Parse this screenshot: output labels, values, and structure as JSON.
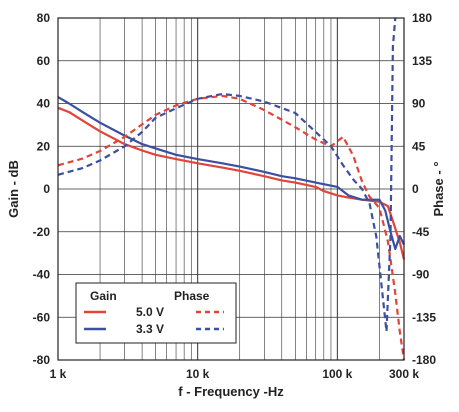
{
  "chart_data": {
    "type": "line",
    "xlabel": "f - Frequency -Hz",
    "ylabel_left": "Gain - dB",
    "ylabel_right": "Phase - °",
    "x_scale": "log",
    "xlim": [
      1000,
      300000
    ],
    "ylim_left": [
      -80,
      80
    ],
    "ylim_right": [
      -180,
      180
    ],
    "x_ticks": [
      {
        "value": 1000,
        "label": "1 k"
      },
      {
        "value": 10000,
        "label": "10 k"
      },
      {
        "value": 100000,
        "label": "100 k"
      },
      {
        "value": 300000,
        "label": "300 k"
      }
    ],
    "y_ticks_left": [
      "80",
      "60",
      "40",
      "20",
      "0",
      "-20",
      "-40",
      "-60",
      "-80"
    ],
    "y_ticks_right": [
      "180",
      "135",
      "90",
      "45",
      "0",
      "-45",
      "-90",
      "-135",
      "-180"
    ],
    "grid": true,
    "legend": {
      "position": "bottom-left",
      "headers": [
        "Gain",
        "Phase"
      ],
      "rows": [
        {
          "label": "5.0 V",
          "color": "#e0443a"
        },
        {
          "label": "3.3 V",
          "color": "#3c4fa0"
        }
      ]
    },
    "series": [
      {
        "name": "5.0 V",
        "quantity": "Gain",
        "axis": "left",
        "style": "solid",
        "color": "#e0443a",
        "points": [
          [
            1000,
            38
          ],
          [
            1200,
            36
          ],
          [
            1500,
            32
          ],
          [
            2000,
            27
          ],
          [
            3000,
            21
          ],
          [
            4000,
            18
          ],
          [
            5000,
            16
          ],
          [
            7000,
            14
          ],
          [
            10000,
            12
          ],
          [
            15000,
            10
          ],
          [
            20000,
            8.5
          ],
          [
            30000,
            6
          ],
          [
            40000,
            4
          ],
          [
            50000,
            3
          ],
          [
            70000,
            1
          ],
          [
            80000,
            -1
          ],
          [
            100000,
            -3
          ],
          [
            120000,
            -4
          ],
          [
            150000,
            -5
          ],
          [
            200000,
            -6
          ],
          [
            230000,
            -8
          ],
          [
            250000,
            -15
          ],
          [
            280000,
            -25
          ],
          [
            300000,
            -33
          ]
        ]
      },
      {
        "name": "3.3 V",
        "quantity": "Gain",
        "axis": "left",
        "style": "solid",
        "color": "#3c4fa0",
        "points": [
          [
            1000,
            43
          ],
          [
            1200,
            40
          ],
          [
            1500,
            36
          ],
          [
            2000,
            31
          ],
          [
            3000,
            25
          ],
          [
            4000,
            21
          ],
          [
            5000,
            19
          ],
          [
            7000,
            16
          ],
          [
            10000,
            14
          ],
          [
            15000,
            12
          ],
          [
            20000,
            10.5
          ],
          [
            30000,
            8
          ],
          [
            40000,
            6
          ],
          [
            50000,
            5
          ],
          [
            70000,
            3
          ],
          [
            100000,
            1
          ],
          [
            120000,
            -3
          ],
          [
            150000,
            -5
          ],
          [
            200000,
            -5
          ],
          [
            220000,
            -10
          ],
          [
            240000,
            -20
          ],
          [
            260000,
            -28
          ],
          [
            280000,
            -22
          ],
          [
            300000,
            -26
          ]
        ]
      },
      {
        "name": "5.0 V",
        "quantity": "Phase",
        "axis": "right",
        "style": "dashed",
        "color": "#e0443a",
        "points": [
          [
            1000,
            25
          ],
          [
            1500,
            32
          ],
          [
            2000,
            40
          ],
          [
            3000,
            55
          ],
          [
            4000,
            68
          ],
          [
            5000,
            78
          ],
          [
            7000,
            88
          ],
          [
            10000,
            95
          ],
          [
            15000,
            98
          ],
          [
            20000,
            95
          ],
          [
            30000,
            83
          ],
          [
            50000,
            65
          ],
          [
            70000,
            52
          ],
          [
            90000,
            45
          ],
          [
            110000,
            55
          ],
          [
            130000,
            35
          ],
          [
            150000,
            8
          ],
          [
            170000,
            -8
          ],
          [
            200000,
            -20
          ],
          [
            230000,
            -55
          ],
          [
            260000,
            -110
          ],
          [
            280000,
            -150
          ],
          [
            300000,
            -180
          ]
        ]
      },
      {
        "name": "3.3 V",
        "quantity": "Phase",
        "axis": "right",
        "style": "dashed",
        "color": "#3c4fa0",
        "points": [
          [
            1000,
            15
          ],
          [
            1500,
            22
          ],
          [
            2000,
            30
          ],
          [
            3000,
            45
          ],
          [
            4000,
            60
          ],
          [
            5000,
            75
          ],
          [
            7000,
            85
          ],
          [
            10000,
            95
          ],
          [
            15000,
            100
          ],
          [
            20000,
            98
          ],
          [
            30000,
            92
          ],
          [
            50000,
            80
          ],
          [
            70000,
            60
          ],
          [
            90000,
            45
          ],
          [
            110000,
            25
          ],
          [
            130000,
            10
          ],
          [
            150000,
            0
          ],
          [
            170000,
            -15
          ],
          [
            190000,
            -50
          ],
          [
            210000,
            -110
          ],
          [
            225000,
            -150
          ],
          [
            240000,
            -50
          ],
          [
            250000,
            150
          ],
          [
            260000,
            180
          ]
        ]
      }
    ]
  }
}
